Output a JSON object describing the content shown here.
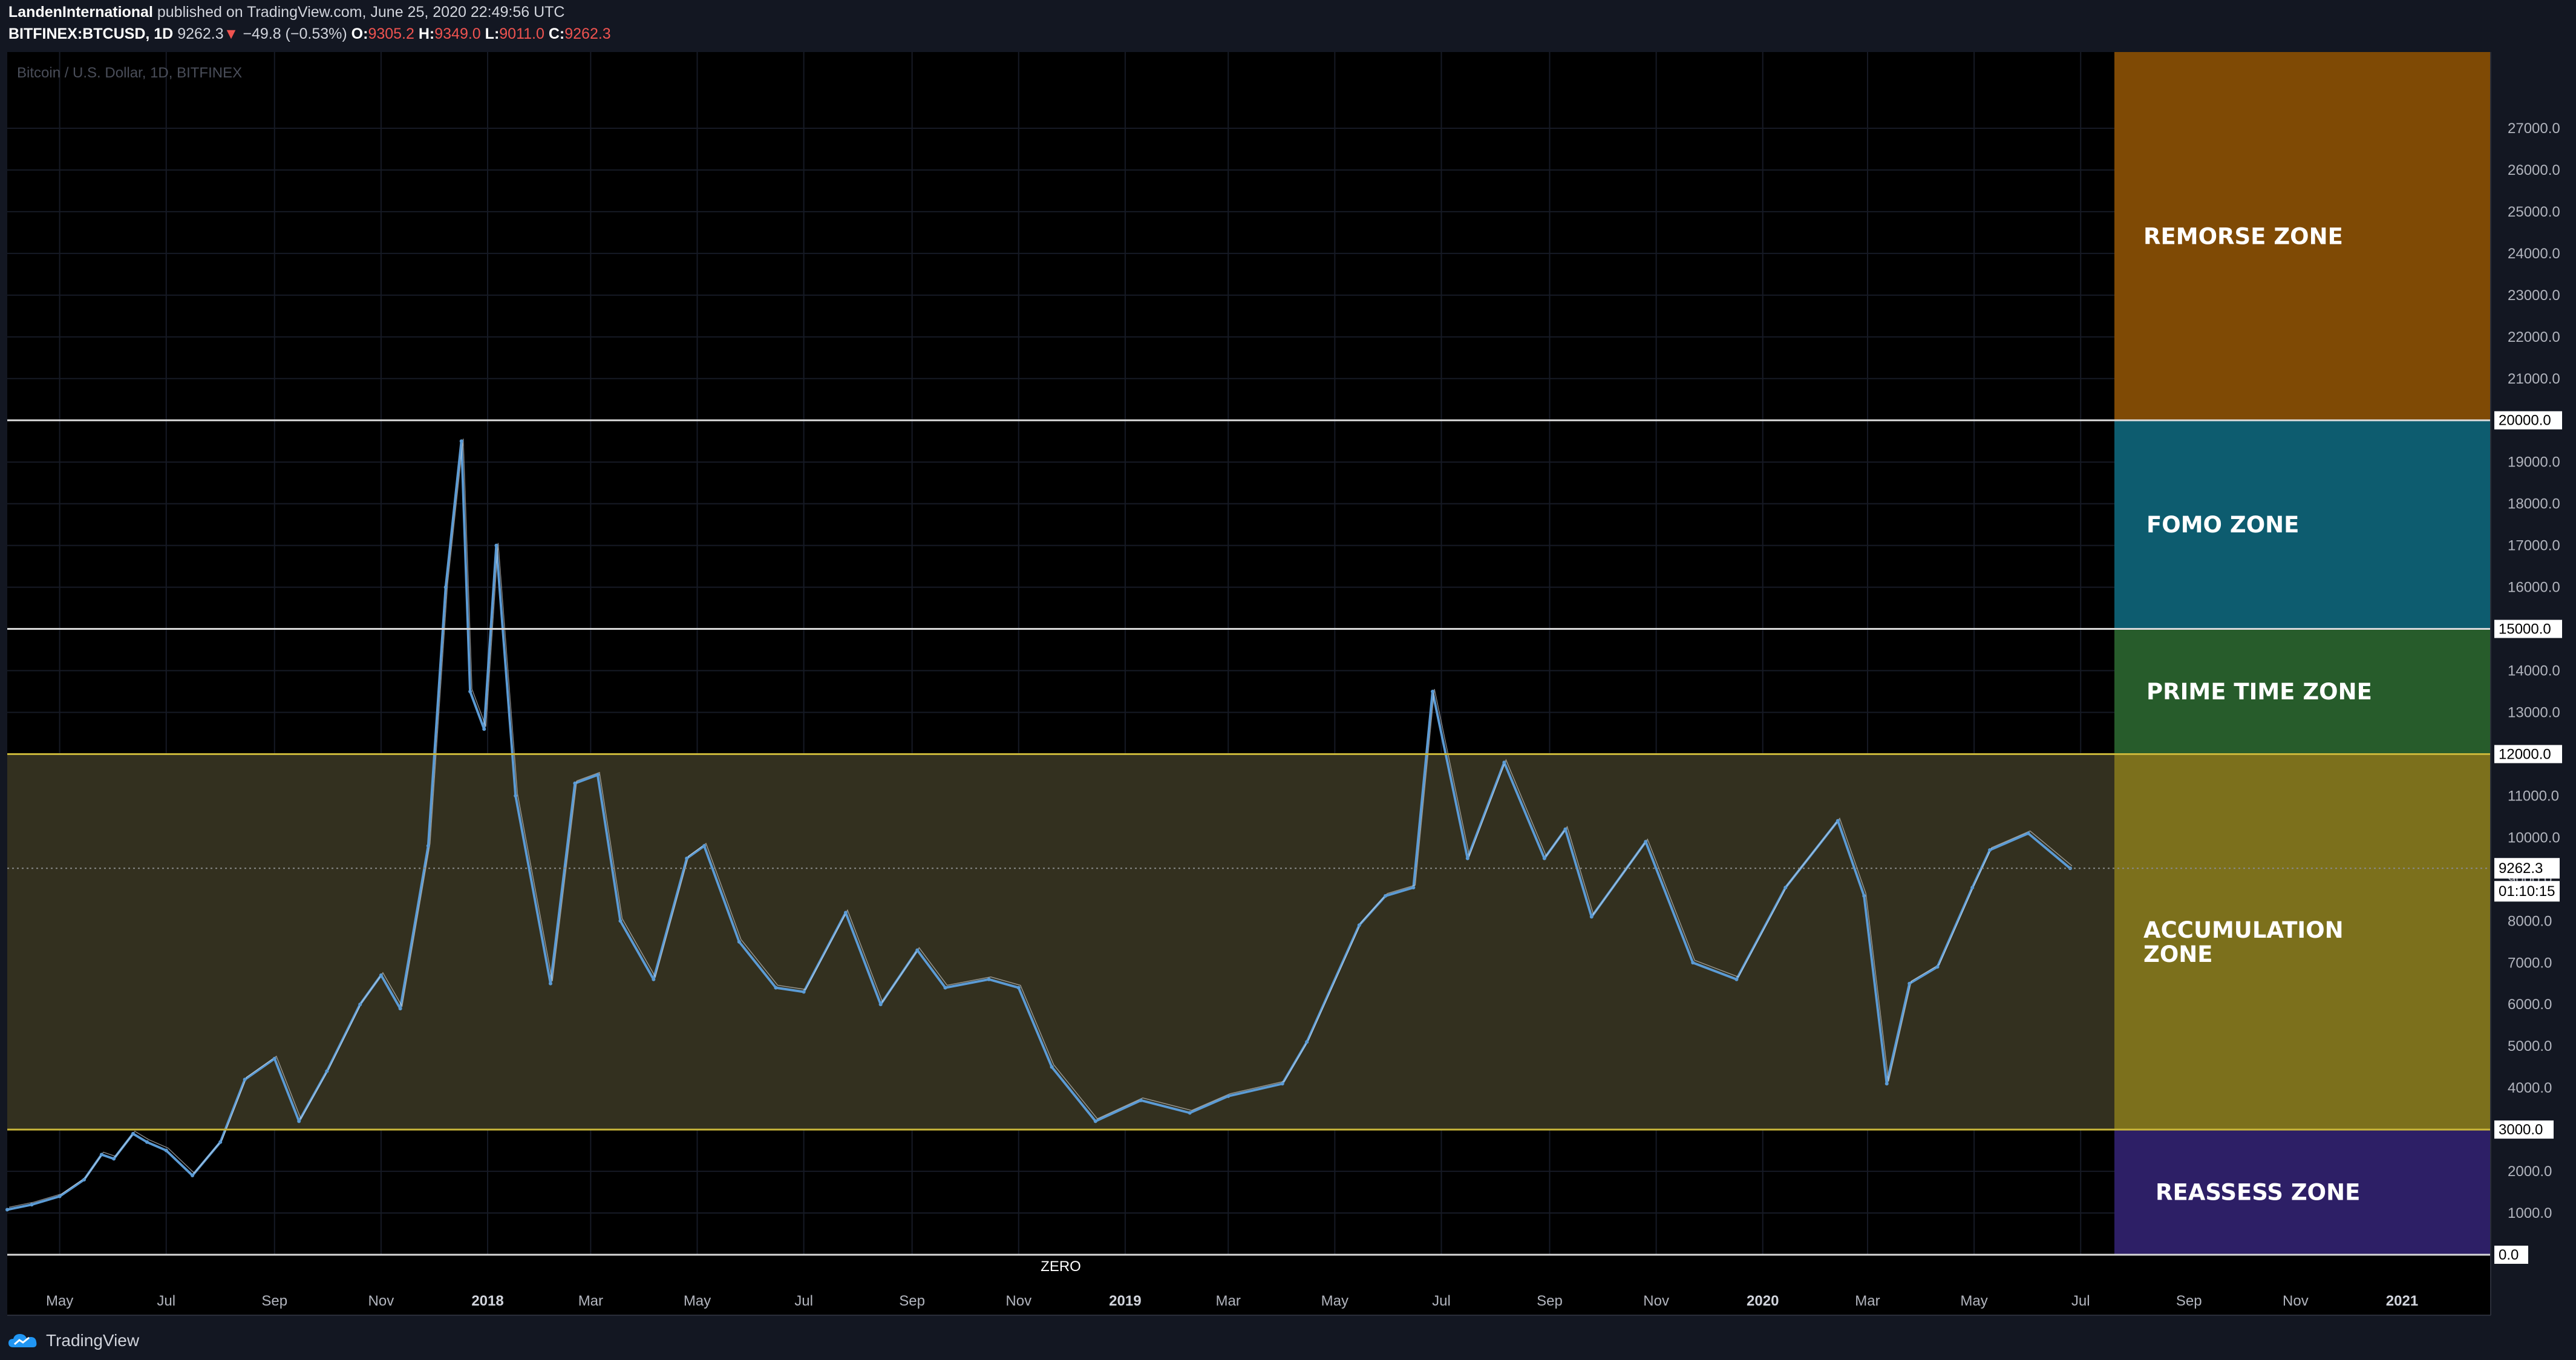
{
  "header": {
    "author": "LandenInternational",
    "published_text": "published on TradingView.com, June 25, 2020 22:49:56 UTC",
    "symbol": "BITFINEX:BTCUSD, 1D",
    "last_price": "9262.3",
    "change_arrow": "▼",
    "change": "−49.8 (−0.53%)",
    "o_label": "O:",
    "open": "9305.2",
    "h_label": "H:",
    "high": "9349.0",
    "l_label": "L:",
    "low": "9011.0",
    "c_label": "C:",
    "close": "9262.3"
  },
  "chart_watermark": "Bitcoin / U.S. Dollar, 1D, BITFINEX",
  "footer": {
    "brand": "TradingView"
  },
  "colors": {
    "background": "#000000",
    "candles_up": "#5b9bd5",
    "candles_down": "#e6e6e6",
    "accumulation_band": "#33301f",
    "remorse": "#7f4a05",
    "fomo": "#0d5c6f",
    "prime": "#275c2b",
    "accumulation": "#7c701c",
    "reassess": "#2d1f66"
  },
  "chart_data": {
    "type": "line",
    "title": "Bitcoin / U.S. Dollar, 1D, BITFINEX",
    "xlabel": "",
    "ylabel": "",
    "ylim": [
      0,
      27500
    ],
    "xlim": [
      "2017-04-01",
      "2021-02-01"
    ],
    "x_ticks": [
      "May",
      "Jul",
      "Sep",
      "Nov",
      "2018",
      "Mar",
      "May",
      "Jul",
      "Sep",
      "Nov",
      "2019",
      "Mar",
      "May",
      "Jul",
      "Sep",
      "Nov",
      "2020",
      "Mar",
      "May",
      "Jul",
      "Sep",
      "Nov",
      "2021"
    ],
    "x_tick_dates": [
      "2017-05-01",
      "2017-07-01",
      "2017-09-01",
      "2017-11-01",
      "2018-01-01",
      "2018-03-01",
      "2018-05-01",
      "2018-07-01",
      "2018-09-01",
      "2018-11-01",
      "2019-01-01",
      "2019-03-01",
      "2019-05-01",
      "2019-07-01",
      "2019-09-01",
      "2019-11-01",
      "2020-01-01",
      "2020-03-01",
      "2020-05-01",
      "2020-07-01",
      "2020-09-01",
      "2020-11-01",
      "2021-01-01"
    ],
    "y_ticks": [
      1000,
      2000,
      3000,
      4000,
      5000,
      6000,
      7000,
      8000,
      9000,
      10000,
      11000,
      12000,
      13000,
      14000,
      15000,
      16000,
      17000,
      18000,
      19000,
      20000,
      21000,
      22000,
      23000,
      24000,
      25000,
      26000,
      27000
    ],
    "y_tick_labels": [
      "1000.0",
      "2000.0",
      "3000.0",
      "4000.0",
      "5000.0",
      "6000.0",
      "7000.0",
      "8000.0",
      "9000.0",
      "10000.0",
      "11000.0",
      "12000.0",
      "13000.0",
      "14000.0",
      "15000.0",
      "16000.0",
      "17000.0",
      "18000.0",
      "19000.0",
      "20000.0",
      "21000.0",
      "22000.0",
      "23000.0",
      "24000.0",
      "25000.0",
      "26000.0",
      "27000.0"
    ],
    "horizontal_levels": [
      {
        "value": 0,
        "label": "0.0"
      },
      {
        "value": 3000,
        "label": "3000.0"
      },
      {
        "value": 12000,
        "label": "12000.0"
      },
      {
        "value": 15000,
        "label": "15000.0"
      },
      {
        "value": 20000,
        "label": "20000.0"
      }
    ],
    "zero_label": "ZERO",
    "last_price_label": "9262.3",
    "countdown_label": "01:10:15",
    "zones": [
      {
        "name": "REMORSE ZONE",
        "from": 20000,
        "to": 27500,
        "color": "#7f4a05"
      },
      {
        "name": "FOMO ZONE",
        "from": 15000,
        "to": 20000,
        "color": "#0d5c6f"
      },
      {
        "name": "PRIME TIME ZONE",
        "from": 12000,
        "to": 15000,
        "color": "#275c2b"
      },
      {
        "name": "ACCUMULATION ZONE",
        "from": 3000,
        "to": 12000,
        "color": "#7c701c"
      },
      {
        "name": "REASSESS ZONE",
        "from": 0,
        "to": 3000,
        "color": "#2d1f66"
      }
    ],
    "series": [
      {
        "values": [
          [
            "2017-04-01",
            1080
          ],
          [
            "2017-04-15",
            1200
          ],
          [
            "2017-05-01",
            1400
          ],
          [
            "2017-05-15",
            1800
          ],
          [
            "2017-05-25",
            2400
          ],
          [
            "2017-06-01",
            2300
          ],
          [
            "2017-06-12",
            2900
          ],
          [
            "2017-06-20",
            2700
          ],
          [
            "2017-07-01",
            2500
          ],
          [
            "2017-07-16",
            1900
          ],
          [
            "2017-08-01",
            2700
          ],
          [
            "2017-08-15",
            4200
          ],
          [
            "2017-09-01",
            4700
          ],
          [
            "2017-09-15",
            3200
          ],
          [
            "2017-10-01",
            4400
          ],
          [
            "2017-10-20",
            6000
          ],
          [
            "2017-11-01",
            6700
          ],
          [
            "2017-11-12",
            5900
          ],
          [
            "2017-11-28",
            9800
          ],
          [
            "2017-12-08",
            16000
          ],
          [
            "2017-12-17",
            19500
          ],
          [
            "2017-12-22",
            13500
          ],
          [
            "2017-12-30",
            12600
          ],
          [
            "2018-01-06",
            17000
          ],
          [
            "2018-01-17",
            11000
          ],
          [
            "2018-02-06",
            6500
          ],
          [
            "2018-02-20",
            11300
          ],
          [
            "2018-03-05",
            11500
          ],
          [
            "2018-03-18",
            8000
          ],
          [
            "2018-04-06",
            6600
          ],
          [
            "2018-04-25",
            9500
          ],
          [
            "2018-05-05",
            9800
          ],
          [
            "2018-05-25",
            7500
          ],
          [
            "2018-06-15",
            6400
          ],
          [
            "2018-07-01",
            6300
          ],
          [
            "2018-07-25",
            8200
          ],
          [
            "2018-08-14",
            6000
          ],
          [
            "2018-09-04",
            7300
          ],
          [
            "2018-09-20",
            6400
          ],
          [
            "2018-10-15",
            6600
          ],
          [
            "2018-11-01",
            6400
          ],
          [
            "2018-11-20",
            4500
          ],
          [
            "2018-12-15",
            3200
          ],
          [
            "2019-01-10",
            3700
          ],
          [
            "2019-02-07",
            3400
          ],
          [
            "2019-03-01",
            3800
          ],
          [
            "2019-04-01",
            4100
          ],
          [
            "2019-04-15",
            5100
          ],
          [
            "2019-05-15",
            7900
          ],
          [
            "2019-05-30",
            8600
          ],
          [
            "2019-06-15",
            8800
          ],
          [
            "2019-06-26",
            13500
          ],
          [
            "2019-07-16",
            9500
          ],
          [
            "2019-08-06",
            11800
          ],
          [
            "2019-08-29",
            9500
          ],
          [
            "2019-09-10",
            10200
          ],
          [
            "2019-09-25",
            8100
          ],
          [
            "2019-10-26",
            9900
          ],
          [
            "2019-11-22",
            7000
          ],
          [
            "2019-12-17",
            6600
          ],
          [
            "2020-01-14",
            8800
          ],
          [
            "2020-02-13",
            10400
          ],
          [
            "2020-02-28",
            8600
          ],
          [
            "2020-03-12",
            4100
          ],
          [
            "2020-03-25",
            6500
          ],
          [
            "2020-04-10",
            6900
          ],
          [
            "2020-04-30",
            8800
          ],
          [
            "2020-05-10",
            9700
          ],
          [
            "2020-06-01",
            10100
          ],
          [
            "2020-06-25",
            9262
          ]
        ]
      }
    ]
  }
}
